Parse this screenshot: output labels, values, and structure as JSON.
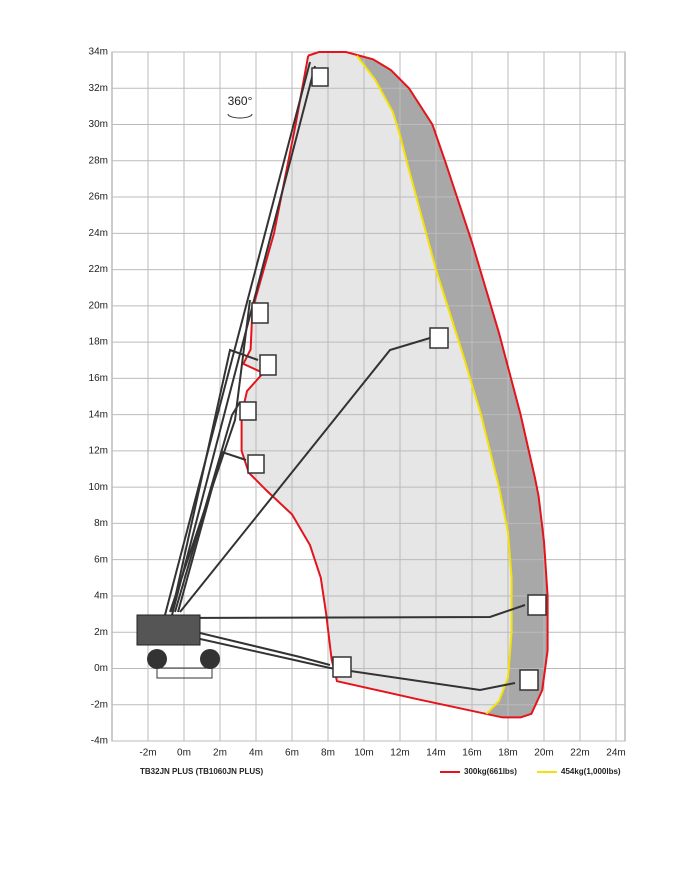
{
  "chart_data": {
    "type": "area",
    "title": "TB32JN PLUS (TB1060JN PLUS)",
    "annotation": "360°",
    "xlim": [
      -4,
      24.5
    ],
    "ylim": [
      -4,
      34
    ],
    "xticks": [
      {
        "value": -2,
        "label": "-2m"
      },
      {
        "value": 0,
        "label": "0m"
      },
      {
        "value": 2,
        "label": "2m"
      },
      {
        "value": 4,
        "label": "4m"
      },
      {
        "value": 6,
        "label": "6m"
      },
      {
        "value": 8,
        "label": "8m"
      },
      {
        "value": 10,
        "label": "10m"
      },
      {
        "value": 12,
        "label": "12m"
      },
      {
        "value": 14,
        "label": "14m"
      },
      {
        "value": 16,
        "label": "16m"
      },
      {
        "value": 18,
        "label": "18m"
      },
      {
        "value": 20,
        "label": "20m"
      },
      {
        "value": 22,
        "label": "22m"
      },
      {
        "value": 24,
        "label": "24m"
      }
    ],
    "yticks": [
      {
        "value": -4,
        "label": "-4m"
      },
      {
        "value": -2,
        "label": "-2m"
      },
      {
        "value": 0,
        "label": "0m"
      },
      {
        "value": 2,
        "label": "2m"
      },
      {
        "value": 4,
        "label": "4m"
      },
      {
        "value": 6,
        "label": "6m"
      },
      {
        "value": 8,
        "label": "8m"
      },
      {
        "value": 10,
        "label": "10m"
      },
      {
        "value": 12,
        "label": "12m"
      },
      {
        "value": 14,
        "label": "14m"
      },
      {
        "value": 16,
        "label": "16m"
      },
      {
        "value": 18,
        "label": "18m"
      },
      {
        "value": 20,
        "label": "20m"
      },
      {
        "value": 22,
        "label": "22m"
      },
      {
        "value": 24,
        "label": "24m"
      },
      {
        "value": 26,
        "label": "26m"
      },
      {
        "value": 28,
        "label": "28m"
      },
      {
        "value": 30,
        "label": "30m"
      },
      {
        "value": 32,
        "label": "32m"
      },
      {
        "value": 34,
        "label": "34m"
      }
    ],
    "grid": true,
    "series": [
      {
        "name": "300kg(661lbs)",
        "color": "#e3141b",
        "fill": "#a8a8a8",
        "x": [
          6.9,
          7.5,
          9,
          10.5,
          11.5,
          12.5,
          13.8,
          14.5,
          16,
          17.5,
          18.7,
          19.5,
          19.7,
          20,
          20.2,
          20.2,
          19.9,
          19.3,
          18.7,
          17.7,
          13,
          8.5,
          8.2,
          7.9,
          7.6,
          7,
          6,
          4.6,
          3.6,
          3.2,
          3.2,
          3.5,
          4.4,
          3.3,
          3.7,
          3.8,
          5,
          6.2,
          6.9
        ],
        "y": [
          33.8,
          34,
          34,
          33.6,
          33,
          32,
          30,
          28,
          23.5,
          18.5,
          14,
          10.5,
          9.5,
          7,
          4,
          1,
          -1.2,
          -2.5,
          -2.7,
          -2.7,
          -1.7,
          -0.7,
          0.5,
          3,
          5,
          6.8,
          8.5,
          9.8,
          10.8,
          12,
          14,
          15.3,
          16.3,
          16.8,
          17.6,
          19.8,
          24,
          30,
          33.8
        ]
      },
      {
        "name": "454kg(1,000lbs)",
        "color": "#f5e10a",
        "fill": "#e6e6e6",
        "x": [
          9.6,
          10.6,
          11.6,
          12,
          12.5,
          14,
          15.5,
          16.5,
          17.5,
          18,
          18.2,
          18.2,
          18,
          17.5,
          16.8
        ],
        "y": [
          33.8,
          32.5,
          30.7,
          29.4,
          27.5,
          22,
          17.3,
          14,
          10,
          7.5,
          5,
          2,
          -0.5,
          -1.8,
          -2.5
        ]
      }
    ]
  }
}
